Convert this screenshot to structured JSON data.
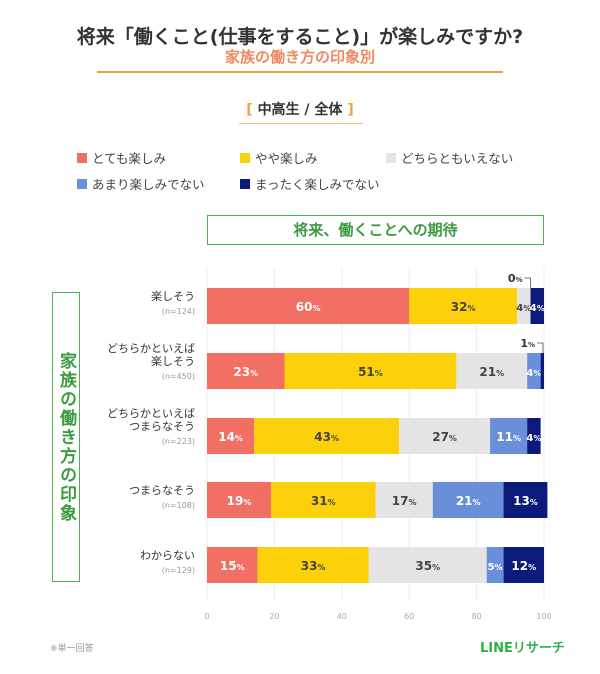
{
  "header": {
    "title": "将来「働くこと(仕事をすること)」が楽しみですか?",
    "subtitle": "家族の働き方の印象別",
    "group_open": "[",
    "group_label": "中高生 / 全体",
    "group_close": "]"
  },
  "footer": {
    "note": "※単一回答",
    "brand": "LINEリサーチ"
  },
  "chart_data": {
    "type": "bar",
    "orientation": "horizontal-stacked-100",
    "title": "将来、働くことへの期待",
    "ylabel": "家族の働き方の印象",
    "xlim": [
      0,
      100
    ],
    "xticks": [
      "0",
      "20",
      "40",
      "60",
      "80",
      "100"
    ],
    "grid": true,
    "legend_placement": "top",
    "value_suffix": "%",
    "categories": [
      {
        "label": "楽しそう",
        "n": "(n=124)"
      },
      {
        "label": "どちらかといえば\n楽しそう",
        "n": "(n=450)"
      },
      {
        "label": "どちらかといえば\nつまらなそう",
        "n": "(n=223)"
      },
      {
        "label": "つまらなそう",
        "n": "(n=108)"
      },
      {
        "label": "わからない",
        "n": "(n=129)"
      }
    ],
    "series": [
      {
        "name": "とても楽しみ",
        "color": "#f26f63",
        "values": [
          60,
          23,
          14,
          19,
          15
        ]
      },
      {
        "name": "やや楽しみ",
        "color": "#fdd10a",
        "values": [
          32,
          51,
          43,
          31,
          33
        ]
      },
      {
        "name": "どちらともいえない",
        "color": "#e4e4e4",
        "values": [
          4,
          21,
          27,
          17,
          35
        ]
      },
      {
        "name": "あまり楽しみでない",
        "color": "#6a8fd9",
        "values": [
          0,
          4,
          11,
          21,
          5
        ]
      },
      {
        "name": "まったく楽しみでない",
        "color": "#0c1a7c",
        "values": [
          4,
          1,
          4,
          13,
          12
        ]
      }
    ]
  }
}
